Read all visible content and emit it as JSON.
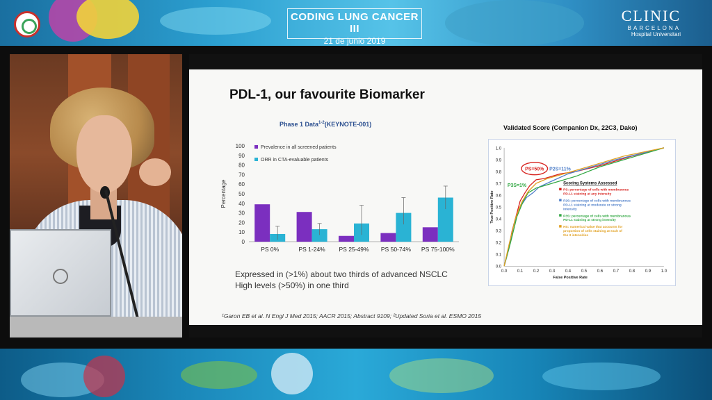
{
  "banner": {
    "event_title": "CODING LUNG CANCER III",
    "event_date": "21 de junio 2019",
    "clinic_name": "CLINIC",
    "clinic_city": "BARCELONA",
    "clinic_sub": "Hospital Universitari"
  },
  "slide": {
    "title": "PDL-1, our favourite Biomarker",
    "note1": "Expressed in (>1%) about two thirds of advanced NSCLC",
    "note2": "High levels (>50%) in one third",
    "references": "¹Garon EB et al. N Engl J Med 2015; AACR 2015; Abstract 9109; ²Updated Soria et al. ESMO 2015"
  },
  "chart_data": [
    {
      "type": "bar",
      "title": "Phase 1 Data",
      "title_sup": "1-2",
      "title_suffix": "(KEYNOTE-001)",
      "ylabel": "Percentage",
      "ylim": [
        0,
        100
      ],
      "yticks": [
        0,
        10,
        20,
        30,
        40,
        50,
        60,
        70,
        80,
        90,
        100
      ],
      "categories": [
        "PS 0%",
        "PS 1-24%",
        "PS 25-49%",
        "PS 50-74%",
        "PS 75-100%"
      ],
      "series": [
        {
          "name": "Prevalence in all screened patients",
          "color": "#7b2fbf",
          "values": [
            39,
            31,
            6,
            9,
            15
          ]
        },
        {
          "name": "ORR in CTA-evaluable patients",
          "color": "#2ab3d4",
          "values": [
            8,
            13,
            19,
            30,
            46
          ],
          "error_high": [
            16,
            19,
            38,
            46,
            58
          ],
          "error_low": [
            2,
            7,
            7,
            18,
            34
          ]
        }
      ],
      "legend": "top-left"
    },
    {
      "type": "line",
      "title": "Validated Score (Companion Dx, 22C3, Dako)",
      "xlabel": "False Positive Rate",
      "ylabel": "True Positive Rate",
      "xlim": [
        0,
        1
      ],
      "ylim": [
        0,
        1
      ],
      "ticks": [
        "0.0",
        "0.1",
        "0.2",
        "0.3",
        "0.4",
        "0.5",
        "0.6",
        "0.7",
        "0.8",
        "0.9",
        "1.0"
      ],
      "legend_title": "Scoring Systems Assessed",
      "legend": [
        {
          "label": "PS: percentage of cells with membranous PD-L1 staining at any intensity",
          "color": "#d7231f"
        },
        {
          "label": "P2S: percentage of cells with membranous PD-L1 staining at moderate or strong intensity",
          "color": "#4f7fc9"
        },
        {
          "label": "P3S: percentage of cells with membranous PD-L1 staining at strong intensity",
          "color": "#33a844"
        },
        {
          "label": "HS: numerical value that accounts for proportion of cells staining at each of the 3 intensities",
          "color": "#e0a020"
        }
      ],
      "annotations": [
        {
          "text": "PS=50%",
          "color": "#d7231f",
          "x": 0.19,
          "y": 0.81
        },
        {
          "text": "P2S=11%",
          "color": "#4f7fc9",
          "x": 0.35,
          "y": 0.81
        },
        {
          "text": "P3S=1%",
          "color": "#33a844",
          "x": 0.08,
          "y": 0.67
        }
      ],
      "series": [
        {
          "name": "PS",
          "color": "#d7231f",
          "x": [
            0,
            0.02,
            0.05,
            0.08,
            0.1,
            0.13,
            0.16,
            0.2,
            0.25,
            0.3,
            0.35,
            0.45,
            0.6,
            0.8,
            1.0
          ],
          "y": [
            0,
            0.1,
            0.3,
            0.45,
            0.55,
            0.62,
            0.68,
            0.73,
            0.74,
            0.76,
            0.78,
            0.8,
            0.85,
            0.93,
            1.0
          ]
        },
        {
          "name": "P2S",
          "color": "#4f7fc9",
          "x": [
            0,
            0.03,
            0.06,
            0.1,
            0.14,
            0.18,
            0.22,
            0.3,
            0.4,
            0.55,
            0.7,
            0.85,
            1.0
          ],
          "y": [
            0,
            0.15,
            0.35,
            0.5,
            0.58,
            0.62,
            0.67,
            0.72,
            0.78,
            0.84,
            0.9,
            0.95,
            1.0
          ]
        },
        {
          "name": "P3S",
          "color": "#33a844",
          "x": [
            0,
            0.04,
            0.08,
            0.12,
            0.15,
            0.2,
            0.3,
            0.45,
            0.6,
            0.8,
            1.0
          ],
          "y": [
            0,
            0.2,
            0.42,
            0.55,
            0.62,
            0.66,
            0.7,
            0.76,
            0.84,
            0.92,
            1.0
          ]
        },
        {
          "name": "HS",
          "color": "#e0a020",
          "x": [
            0,
            0.03,
            0.07,
            0.11,
            0.15,
            0.2,
            0.27,
            0.4,
            0.55,
            0.75,
            1.0
          ],
          "y": [
            0,
            0.18,
            0.4,
            0.54,
            0.63,
            0.7,
            0.74,
            0.79,
            0.85,
            0.93,
            1.0
          ]
        }
      ]
    }
  ]
}
